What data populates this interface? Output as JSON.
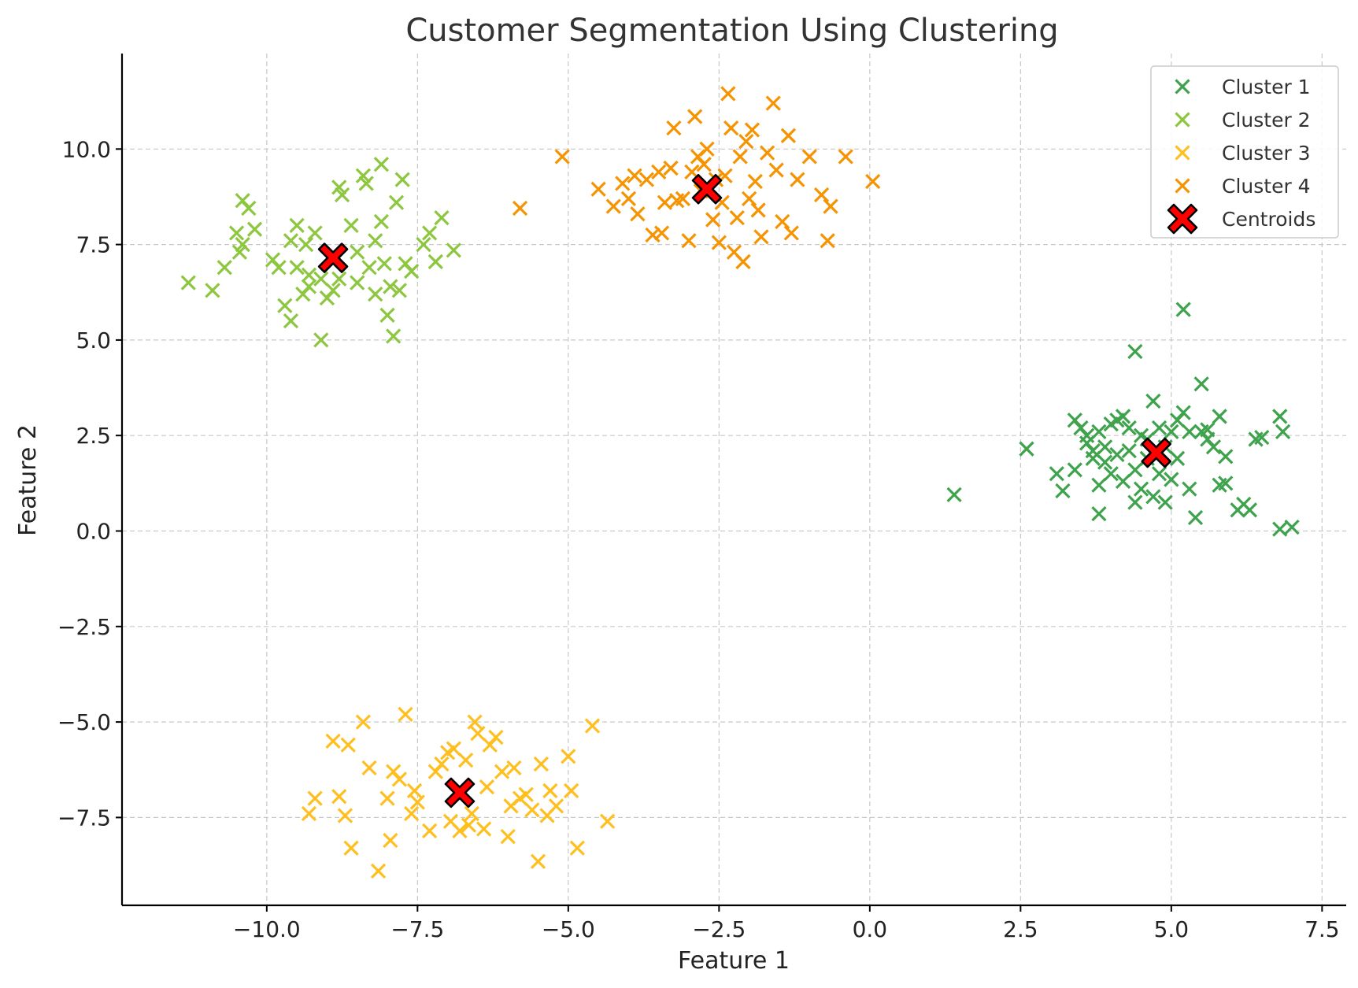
{
  "chart_data": {
    "type": "scatter",
    "title": "Customer Segmentation Using Clustering",
    "xlabel": "Feature 1",
    "ylabel": "Feature 2",
    "xlim": [
      -12.4,
      7.9
    ],
    "ylim": [
      -9.8,
      12.5
    ],
    "xticks": [
      -10.0,
      -7.5,
      -5.0,
      -2.5,
      0.0,
      2.5,
      5.0,
      7.5
    ],
    "yticks": [
      -7.5,
      -5.0,
      -2.5,
      0.0,
      2.5,
      5.0,
      7.5,
      10.0
    ],
    "xtick_labels": [
      "−10.0",
      "−7.5",
      "−5.0",
      "−2.5",
      "0.0",
      "2.5",
      "5.0",
      "7.5"
    ],
    "ytick_labels": [
      "−7.5",
      "−5.0",
      "−2.5",
      "0.0",
      "2.5",
      "5.0",
      "7.5",
      "10.0"
    ],
    "grid": true,
    "legend_position": "top-right",
    "series": [
      {
        "name": "Cluster 1",
        "color": "#3fa34d",
        "marker": "x",
        "points": [
          [
            1.4,
            0.95
          ],
          [
            2.6,
            2.15
          ],
          [
            3.1,
            1.5
          ],
          [
            3.2,
            1.05
          ],
          [
            3.4,
            2.9
          ],
          [
            3.4,
            1.6
          ],
          [
            3.5,
            2.7
          ],
          [
            3.6,
            2.3
          ],
          [
            3.6,
            2.5
          ],
          [
            3.7,
            1.9
          ],
          [
            3.7,
            2.1
          ],
          [
            3.8,
            1.2
          ],
          [
            3.8,
            0.45
          ],
          [
            3.8,
            2.6
          ],
          [
            3.9,
            1.8
          ],
          [
            3.9,
            2.2
          ],
          [
            4.0,
            2.8
          ],
          [
            4.0,
            1.5
          ],
          [
            4.1,
            2.9
          ],
          [
            4.1,
            2.0
          ],
          [
            4.2,
            3.0
          ],
          [
            4.2,
            1.3
          ],
          [
            4.3,
            2.7
          ],
          [
            4.3,
            2.1
          ],
          [
            4.4,
            0.75
          ],
          [
            4.4,
            4.7
          ],
          [
            4.4,
            1.6
          ],
          [
            4.5,
            2.5
          ],
          [
            4.5,
            1.1
          ],
          [
            4.6,
            1.9
          ],
          [
            4.6,
            2.4
          ],
          [
            4.7,
            3.4
          ],
          [
            4.7,
            0.9
          ],
          [
            4.8,
            1.5
          ],
          [
            4.8,
            2.7
          ],
          [
            4.9,
            2.2
          ],
          [
            4.9,
            0.75
          ],
          [
            5.0,
            1.35
          ],
          [
            5.0,
            2.6
          ],
          [
            5.1,
            2.9
          ],
          [
            5.1,
            1.9
          ],
          [
            5.2,
            5.8
          ],
          [
            5.2,
            3.1
          ],
          [
            5.3,
            1.1
          ],
          [
            5.3,
            2.6
          ],
          [
            5.4,
            0.35
          ],
          [
            5.5,
            2.6
          ],
          [
            5.5,
            3.85
          ],
          [
            5.6,
            2.4
          ],
          [
            5.6,
            2.65
          ],
          [
            5.7,
            2.2
          ],
          [
            5.8,
            3.0
          ],
          [
            5.8,
            1.2
          ],
          [
            5.9,
            1.95
          ],
          [
            5.9,
            1.25
          ],
          [
            6.1,
            0.55
          ],
          [
            6.2,
            0.7
          ],
          [
            6.3,
            0.55
          ],
          [
            6.4,
            2.4
          ],
          [
            6.5,
            2.45
          ],
          [
            6.8,
            3.0
          ],
          [
            6.8,
            0.05
          ],
          [
            6.85,
            2.6
          ],
          [
            7.0,
            0.1
          ]
        ]
      },
      {
        "name": "Cluster 2",
        "color": "#8dc63f",
        "marker": "x",
        "points": [
          [
            -11.3,
            6.5
          ],
          [
            -10.9,
            6.3
          ],
          [
            -10.7,
            6.9
          ],
          [
            -10.5,
            7.8
          ],
          [
            -10.45,
            7.3
          ],
          [
            -10.4,
            7.5
          ],
          [
            -10.4,
            8.65
          ],
          [
            -10.3,
            8.45
          ],
          [
            -10.2,
            7.9
          ],
          [
            -9.9,
            7.1
          ],
          [
            -9.8,
            6.9
          ],
          [
            -9.7,
            5.9
          ],
          [
            -9.6,
            5.5
          ],
          [
            -9.6,
            7.6
          ],
          [
            -9.5,
            6.9
          ],
          [
            -9.5,
            8.0
          ],
          [
            -9.4,
            6.2
          ],
          [
            -9.35,
            7.5
          ],
          [
            -9.3,
            6.4
          ],
          [
            -9.3,
            6.7
          ],
          [
            -9.2,
            7.8
          ],
          [
            -9.1,
            5.0
          ],
          [
            -9.1,
            6.6
          ],
          [
            -9.0,
            6.1
          ],
          [
            -8.9,
            6.3
          ],
          [
            -8.8,
            9.0
          ],
          [
            -8.8,
            6.6
          ],
          [
            -8.75,
            8.8
          ],
          [
            -8.6,
            8.0
          ],
          [
            -8.5,
            7.3
          ],
          [
            -8.5,
            6.5
          ],
          [
            -8.4,
            9.3
          ],
          [
            -8.35,
            9.1
          ],
          [
            -8.3,
            6.9
          ],
          [
            -8.2,
            7.6
          ],
          [
            -8.2,
            6.2
          ],
          [
            -8.1,
            9.6
          ],
          [
            -8.1,
            8.1
          ],
          [
            -8.05,
            7.0
          ],
          [
            -8.0,
            5.65
          ],
          [
            -7.95,
            6.4
          ],
          [
            -7.9,
            5.1
          ],
          [
            -7.85,
            8.6
          ],
          [
            -7.8,
            6.3
          ],
          [
            -7.75,
            9.2
          ],
          [
            -7.7,
            7.0
          ],
          [
            -7.6,
            6.8
          ],
          [
            -7.4,
            7.5
          ],
          [
            -7.3,
            7.8
          ],
          [
            -7.2,
            7.05
          ],
          [
            -7.1,
            8.2
          ],
          [
            -6.9,
            7.35
          ]
        ]
      },
      {
        "name": "Cluster 3",
        "color": "#ffbf1f",
        "marker": "x",
        "points": [
          [
            -9.3,
            -7.4
          ],
          [
            -9.2,
            -7.0
          ],
          [
            -8.9,
            -5.5
          ],
          [
            -8.8,
            -6.95
          ],
          [
            -8.7,
            -7.45
          ],
          [
            -8.65,
            -5.6
          ],
          [
            -8.6,
            -8.3
          ],
          [
            -8.4,
            -5.0
          ],
          [
            -8.3,
            -6.2
          ],
          [
            -8.15,
            -8.9
          ],
          [
            -8.0,
            -7.0
          ],
          [
            -7.95,
            -8.1
          ],
          [
            -7.9,
            -6.3
          ],
          [
            -7.8,
            -6.5
          ],
          [
            -7.7,
            -4.8
          ],
          [
            -7.6,
            -7.4
          ],
          [
            -7.55,
            -6.8
          ],
          [
            -7.5,
            -7.1
          ],
          [
            -7.3,
            -7.85
          ],
          [
            -7.2,
            -6.3
          ],
          [
            -7.1,
            -6.1
          ],
          [
            -7.0,
            -5.8
          ],
          [
            -6.95,
            -7.6
          ],
          [
            -6.9,
            -5.7
          ],
          [
            -6.8,
            -7.85
          ],
          [
            -6.7,
            -6.0
          ],
          [
            -6.65,
            -7.7
          ],
          [
            -6.6,
            -7.4
          ],
          [
            -6.55,
            -5.0
          ],
          [
            -6.5,
            -5.3
          ],
          [
            -6.4,
            -7.8
          ],
          [
            -6.35,
            -6.7
          ],
          [
            -6.3,
            -5.6
          ],
          [
            -6.2,
            -5.4
          ],
          [
            -6.1,
            -6.3
          ],
          [
            -6.0,
            -8.0
          ],
          [
            -5.95,
            -7.2
          ],
          [
            -5.9,
            -6.2
          ],
          [
            -5.8,
            -7.0
          ],
          [
            -5.7,
            -6.9
          ],
          [
            -5.6,
            -7.3
          ],
          [
            -5.5,
            -8.65
          ],
          [
            -5.45,
            -6.1
          ],
          [
            -5.35,
            -7.45
          ],
          [
            -5.3,
            -6.8
          ],
          [
            -5.2,
            -7.2
          ],
          [
            -5.0,
            -5.9
          ],
          [
            -4.95,
            -6.8
          ],
          [
            -4.85,
            -8.3
          ],
          [
            -4.6,
            -5.1
          ],
          [
            -4.35,
            -7.6
          ]
        ]
      },
      {
        "name": "Cluster 4",
        "color": "#f59400",
        "marker": "x",
        "points": [
          [
            -5.8,
            8.45
          ],
          [
            -5.1,
            9.8
          ],
          [
            -4.5,
            8.95
          ],
          [
            -4.25,
            8.5
          ],
          [
            -4.1,
            9.1
          ],
          [
            -4.0,
            8.7
          ],
          [
            -3.9,
            9.3
          ],
          [
            -3.85,
            8.3
          ],
          [
            -3.7,
            9.2
          ],
          [
            -3.6,
            7.75
          ],
          [
            -3.5,
            9.4
          ],
          [
            -3.45,
            7.8
          ],
          [
            -3.4,
            8.6
          ],
          [
            -3.3,
            9.5
          ],
          [
            -3.25,
            10.55
          ],
          [
            -3.2,
            8.65
          ],
          [
            -3.1,
            8.7
          ],
          [
            -3.0,
            7.6
          ],
          [
            -2.95,
            9.4
          ],
          [
            -2.9,
            10.85
          ],
          [
            -2.85,
            9.8
          ],
          [
            -2.8,
            8.9
          ],
          [
            -2.75,
            9.6
          ],
          [
            -2.7,
            10.0
          ],
          [
            -2.6,
            8.15
          ],
          [
            -2.55,
            9.2
          ],
          [
            -2.5,
            7.55
          ],
          [
            -2.45,
            8.6
          ],
          [
            -2.4,
            9.3
          ],
          [
            -2.35,
            11.45
          ],
          [
            -2.3,
            10.55
          ],
          [
            -2.25,
            7.3
          ],
          [
            -2.2,
            8.2
          ],
          [
            -2.15,
            9.8
          ],
          [
            -2.1,
            7.05
          ],
          [
            -2.05,
            10.2
          ],
          [
            -2.0,
            8.7
          ],
          [
            -1.95,
            10.5
          ],
          [
            -1.9,
            9.15
          ],
          [
            -1.85,
            8.4
          ],
          [
            -1.8,
            7.7
          ],
          [
            -1.7,
            9.9
          ],
          [
            -1.6,
            11.2
          ],
          [
            -1.55,
            9.45
          ],
          [
            -1.45,
            8.1
          ],
          [
            -1.35,
            10.35
          ],
          [
            -1.3,
            7.8
          ],
          [
            -1.2,
            9.2
          ],
          [
            -1.0,
            9.8
          ],
          [
            -0.8,
            8.8
          ],
          [
            -0.7,
            7.6
          ],
          [
            -0.65,
            8.5
          ],
          [
            -0.4,
            9.8
          ],
          [
            0.05,
            9.15
          ]
        ]
      }
    ],
    "centroids": {
      "name": "Centroids",
      "color": "#ff0000",
      "edge_color": "#000000",
      "marker": "X",
      "points": [
        [
          4.75,
          2.05
        ],
        [
          -8.9,
          7.15
        ],
        [
          -6.8,
          -6.85
        ],
        [
          -2.7,
          8.95
        ]
      ]
    }
  }
}
